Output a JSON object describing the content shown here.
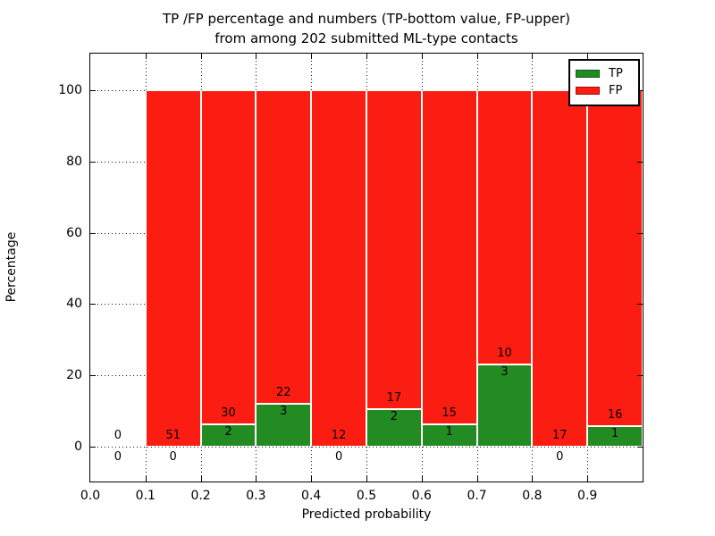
{
  "title": {
    "line1": "TP /FP percentage and numbers (TP-bottom value, FP-upper)",
    "line2": "from among 202 submitted ML-type contacts"
  },
  "axes": {
    "xlabel": "Predicted probability",
    "ylabel": "Percentage",
    "xtick_labels": [
      "0.0",
      "0.1",
      "0.2",
      "0.3",
      "0.4",
      "0.5",
      "0.6",
      "0.7",
      "0.8",
      "0.9"
    ],
    "ytick_values": [
      0,
      20,
      40,
      60,
      80,
      100
    ]
  },
  "legend": {
    "items": [
      {
        "label": "TP",
        "color": "#228b22"
      },
      {
        "label": "FP",
        "color": "#fb1d12"
      }
    ]
  },
  "colors": {
    "tp_green": "#228b22",
    "fp_red": "#fb1d12",
    "bar_edge": "#ffffff",
    "grid": "#111111",
    "text": "#000000"
  },
  "chart_data": {
    "type": "bar",
    "stacked": true,
    "title": "TP /FP percentage and numbers (TP-bottom value, FP-upper) from among 202 submitted ML-type contacts",
    "xlabel": "Predicted probability",
    "ylabel": "Percentage",
    "xlim": [
      0.0,
      1.0
    ],
    "ylim": [
      -10,
      110
    ],
    "grid": true,
    "legend_position": "upper right",
    "total_contacts": 202,
    "bin_width": 0.1,
    "series": [
      {
        "name": "TP",
        "values": [
          0,
          0,
          2,
          3,
          0,
          2,
          1,
          3,
          0,
          1
        ]
      },
      {
        "name": "FP",
        "values": [
          0,
          51,
          30,
          22,
          12,
          17,
          15,
          10,
          17,
          16
        ]
      }
    ],
    "bins": [
      {
        "range": "0.0-0.1",
        "tp": 0,
        "fp": 0,
        "tp_pct": 0.0,
        "fp_pct": 0.0
      },
      {
        "range": "0.1-0.2",
        "tp": 0,
        "fp": 51,
        "tp_pct": 0.0,
        "fp_pct": 100.0
      },
      {
        "range": "0.2-0.3",
        "tp": 2,
        "fp": 30,
        "tp_pct": 6.25,
        "fp_pct": 93.75
      },
      {
        "range": "0.3-0.4",
        "tp": 3,
        "fp": 22,
        "tp_pct": 12.0,
        "fp_pct": 88.0
      },
      {
        "range": "0.4-0.5",
        "tp": 0,
        "fp": 12,
        "tp_pct": 0.0,
        "fp_pct": 100.0
      },
      {
        "range": "0.5-0.6",
        "tp": 2,
        "fp": 17,
        "tp_pct": 10.53,
        "fp_pct": 89.47
      },
      {
        "range": "0.6-0.7",
        "tp": 1,
        "fp": 15,
        "tp_pct": 6.25,
        "fp_pct": 93.75
      },
      {
        "range": "0.7-0.8",
        "tp": 3,
        "fp": 10,
        "tp_pct": 23.08,
        "fp_pct": 76.92
      },
      {
        "range": "0.8-0.9",
        "tp": 0,
        "fp": 17,
        "tp_pct": 0.0,
        "fp_pct": 100.0
      },
      {
        "range": "0.9-1.0",
        "tp": 1,
        "fp": 16,
        "tp_pct": 5.88,
        "fp_pct": 94.12
      }
    ]
  }
}
